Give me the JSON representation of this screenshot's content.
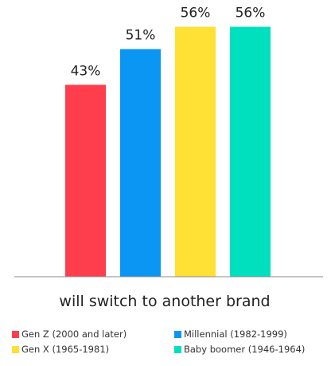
{
  "chart_data": {
    "type": "bar",
    "categories": [
      "will switch to another brand"
    ],
    "series": [
      {
        "name": "Gen Z (2000 and later)",
        "values": [
          43
        ],
        "label": "43%",
        "color": "#ff3e4d"
      },
      {
        "name": "Millennial (1982-1999)",
        "values": [
          51
        ],
        "label": "51%",
        "color": "#0b96f4"
      },
      {
        "name": "Gen X (1965-1981)",
        "values": [
          56
        ],
        "label": "56%",
        "color": "#ffe035"
      },
      {
        "name": "Baby boomer (1946-1964)",
        "values": [
          56
        ],
        "label": "56%",
        "color": "#00e0bf"
      }
    ],
    "ylim": [
      0,
      62
    ],
    "grid": false,
    "legend_position": "bottom"
  }
}
